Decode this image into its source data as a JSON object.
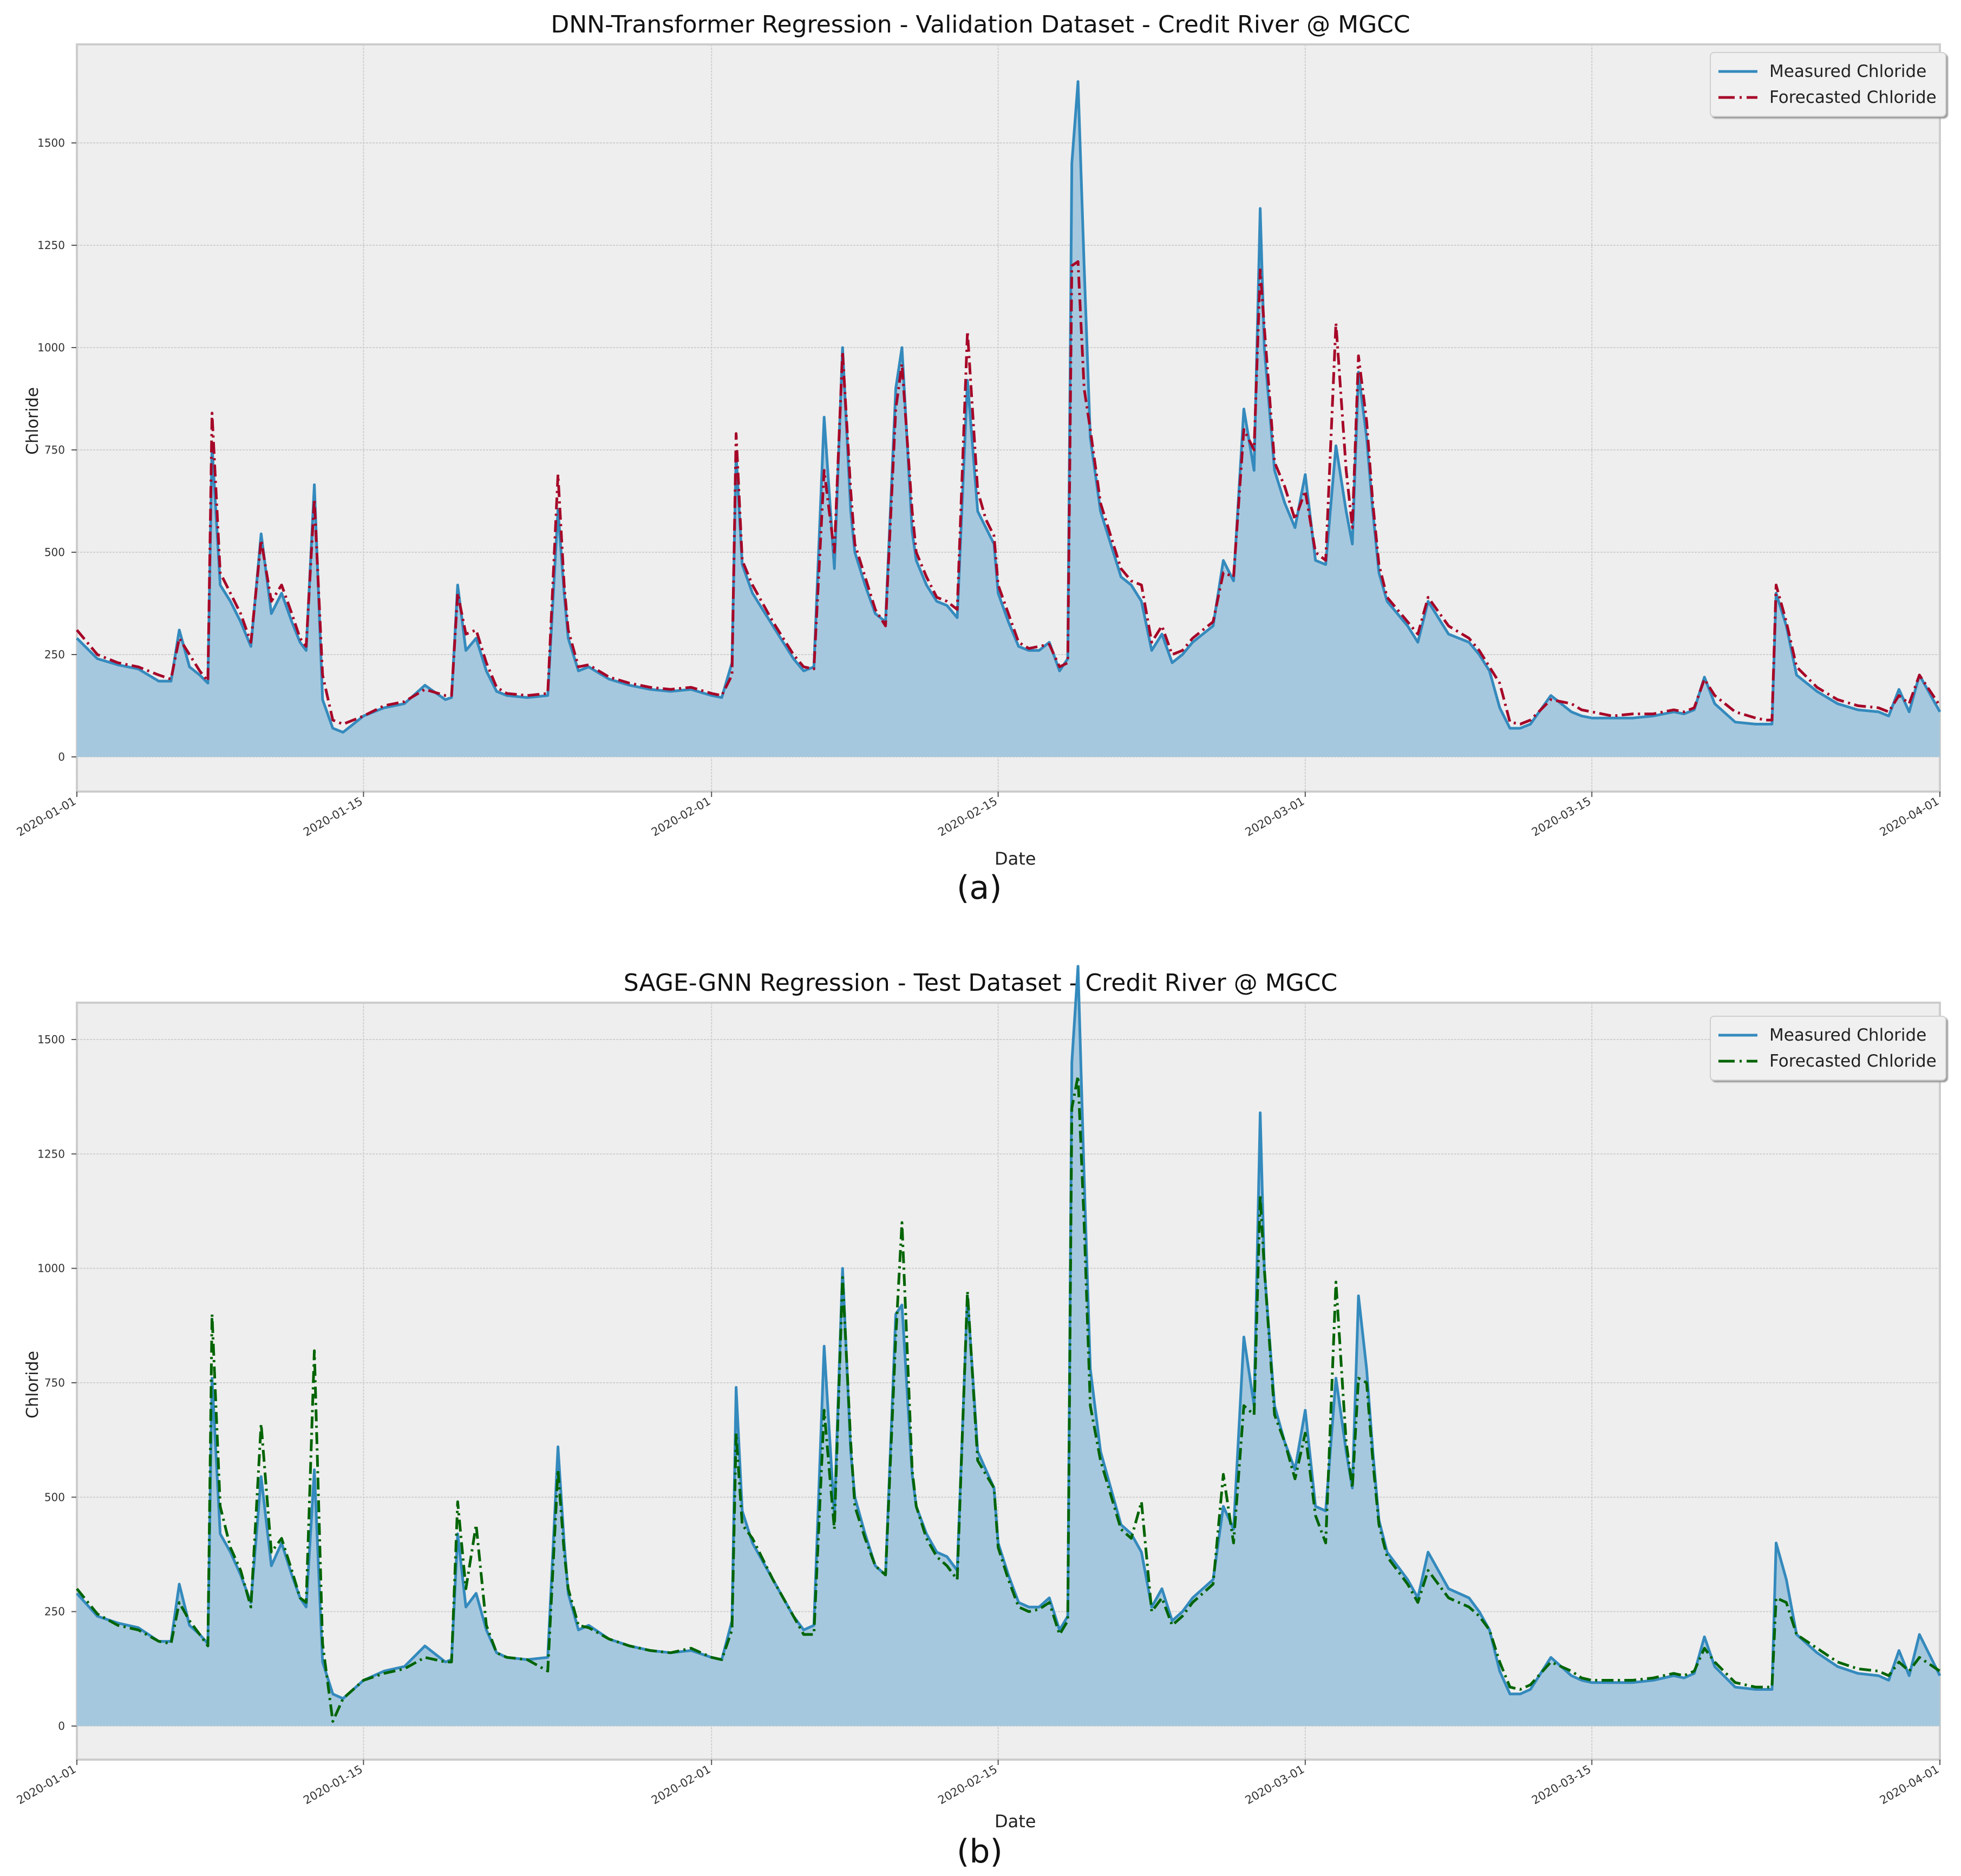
{
  "figures": [
    {
      "id": "a",
      "title": "DNN-Transformer Regression - Validation Dataset - Credit River @ MGCC",
      "ylabel": "Chloride",
      "xlabel": "Date",
      "caption": "(a)",
      "legend": {
        "measured_label": "Measured Chloride",
        "forecast_label": "Forecasted Chloride"
      },
      "colors": {
        "measured": "#348abd",
        "fill": "#a6c8de",
        "forecast": "#a60628",
        "plot_bg": "#eeeeee",
        "grid": "#cfcfcf"
      }
    },
    {
      "id": "b",
      "title": "SAGE-GNN Regression - Test Dataset - Credit River @ MGCC",
      "ylabel": "Chloride",
      "xlabel": "Date",
      "caption": "(b)",
      "legend": {
        "measured_label": "Measured Chloride",
        "forecast_label": "Forecasted Chloride"
      },
      "colors": {
        "measured": "#348abd",
        "fill": "#a6c8de",
        "forecast": "#006400",
        "plot_bg": "#eeeeee",
        "grid": "#cfcfcf"
      }
    }
  ],
  "chart_data": [
    {
      "type": "area",
      "title": "DNN-Transformer Regression - Validation Dataset - Credit River @ MGCC",
      "xlabel": "Date",
      "ylabel": "Chloride",
      "x_ticks": [
        "2020-01-01",
        "2020-01-15",
        "2020-02-01",
        "2020-02-15",
        "2020-03-01",
        "2020-03-15",
        "2020-04-01"
      ],
      "x_tick_days": [
        0,
        14,
        31,
        45,
        60,
        74,
        91
      ],
      "y_ticks": [
        0,
        250,
        500,
        750,
        1000,
        1250,
        1500
      ],
      "ylim": [
        -80,
        1730
      ],
      "xlim_days": [
        0,
        91
      ],
      "grid": true,
      "legend_position": "upper right",
      "x_days": [
        0,
        1,
        2,
        3,
        4,
        4.6,
        5,
        5.5,
        6,
        6.4,
        6.6,
        7,
        7.5,
        8,
        8.5,
        9,
        9.5,
        10,
        10.5,
        10.9,
        11.2,
        11.6,
        12,
        12.5,
        13,
        14,
        15,
        15.5,
        16,
        17,
        18,
        18.3,
        18.6,
        19,
        19.5,
        20,
        20.5,
        21,
        22,
        23,
        23.5,
        23.8,
        24,
        24.5,
        25,
        26,
        27,
        28,
        29,
        30,
        31,
        31.5,
        32,
        32.2,
        32.5,
        33,
        34,
        35,
        35.5,
        36,
        36.5,
        37,
        37.4,
        37.8,
        38,
        38.5,
        39,
        39.5,
        40,
        40.3,
        40.8,
        41,
        41.5,
        42,
        42.5,
        43,
        43.5,
        44,
        44.4,
        44.8,
        45,
        45.5,
        46,
        46.5,
        47,
        47.5,
        48,
        48.4,
        48.6,
        48.9,
        49.2,
        49.5,
        50,
        51,
        51.5,
        52,
        52.5,
        53,
        53.5,
        54,
        54.5,
        55,
        55.5,
        56,
        56.5,
        57,
        57.5,
        57.8,
        58,
        58.5,
        59,
        59.5,
        60,
        60.5,
        61,
        61.5,
        62,
        62.3,
        62.6,
        63,
        63.3,
        63.6,
        64,
        64.5,
        65,
        65.5,
        66,
        67,
        68,
        68.5,
        69,
        69.5,
        70,
        70.5,
        71,
        72,
        73,
        73.5,
        74,
        75,
        76,
        77,
        78,
        78.5,
        79,
        79.5,
        80,
        81,
        82,
        82.5,
        82.8,
        83,
        83.5,
        84,
        85,
        86,
        87,
        88,
        88.5,
        89,
        89.5,
        90,
        91
      ],
      "series": [
        {
          "name": "Measured Chloride",
          "values": [
            290,
            240,
            225,
            215,
            185,
            185,
            310,
            220,
            200,
            180,
            760,
            420,
            380,
            330,
            270,
            545,
            350,
            400,
            330,
            280,
            260,
            665,
            140,
            70,
            60,
            100,
            120,
            125,
            130,
            175,
            140,
            145,
            420,
            260,
            290,
            210,
            160,
            150,
            145,
            150,
            605,
            400,
            290,
            210,
            220,
            190,
            175,
            165,
            160,
            165,
            150,
            145,
            230,
            740,
            470,
            400,
            320,
            240,
            210,
            220,
            830,
            460,
            1000,
            600,
            500,
            420,
            350,
            330,
            900,
            1000,
            550,
            480,
            420,
            380,
            370,
            340,
            920,
            600,
            560,
            520,
            400,
            330,
            270,
            260,
            260,
            280,
            210,
            240,
            1450,
            1650,
            1200,
            780,
            600,
            440,
            420,
            380,
            260,
            300,
            230,
            250,
            280,
            300,
            320,
            480,
            430,
            850,
            700,
            1340,
            1000,
            700,
            620,
            560,
            690,
            480,
            470,
            760,
            600,
            520,
            940,
            780,
            600,
            450,
            380,
            350,
            320,
            280,
            380,
            300,
            280,
            250,
            210,
            120,
            70,
            70,
            80,
            150,
            110,
            100,
            95,
            95,
            95,
            100,
            110,
            105,
            115,
            195,
            130,
            85,
            80,
            80,
            80,
            400,
            320,
            200,
            160,
            130,
            115,
            110,
            100,
            165,
            110,
            200,
            110,
            90,
            85,
            90
          ]
        },
        {
          "name": "Forecasted Chloride",
          "values": [
            310,
            250,
            230,
            220,
            200,
            190,
            290,
            250,
            210,
            185,
            840,
            450,
            400,
            350,
            280,
            530,
            380,
            420,
            350,
            290,
            270,
            630,
            200,
            90,
            80,
            100,
            125,
            130,
            135,
            165,
            150,
            150,
            400,
            300,
            310,
            230,
            170,
            155,
            150,
            155,
            690,
            420,
            310,
            220,
            225,
            195,
            180,
            170,
            165,
            170,
            155,
            150,
            200,
            790,
            480,
            420,
            330,
            250,
            220,
            215,
            700,
            500,
            990,
            650,
            520,
            440,
            360,
            320,
            850,
            960,
            600,
            500,
            440,
            390,
            380,
            360,
            1040,
            650,
            580,
            540,
            420,
            350,
            280,
            265,
            270,
            275,
            220,
            230,
            1200,
            1210,
            900,
            800,
            620,
            460,
            430,
            420,
            280,
            320,
            250,
            260,
            290,
            310,
            330,
            450,
            440,
            800,
            750,
            1190,
            1050,
            720,
            660,
            580,
            650,
            500,
            480,
            1060,
            700,
            560,
            980,
            820,
            620,
            470,
            390,
            360,
            330,
            300,
            390,
            320,
            290,
            260,
            220,
            180,
            85,
            80,
            90,
            140,
            130,
            115,
            110,
            100,
            105,
            105,
            115,
            110,
            120,
            190,
            150,
            110,
            95,
            90,
            90,
            420,
            330,
            220,
            170,
            140,
            125,
            120,
            110,
            150,
            130,
            200,
            125,
            100,
            95,
            95
          ]
        }
      ]
    },
    {
      "type": "area",
      "title": "SAGE-GNN Regression - Test Dataset - Credit River @ MGCC",
      "xlabel": "Date",
      "ylabel": "Chloride",
      "x_ticks": [
        "2020-01-01",
        "2020-01-15",
        "2020-02-01",
        "2020-02-15",
        "2020-03-01",
        "2020-03-15",
        "2020-04-01"
      ],
      "x_tick_days": [
        0,
        14,
        31,
        45,
        60,
        74,
        91
      ],
      "y_ticks": [
        0,
        250,
        500,
        750,
        1000,
        1250,
        1500
      ],
      "ylim": [
        -80,
        1730
      ],
      "xlim_days": [
        0,
        91
      ],
      "grid": true,
      "legend_position": "upper right",
      "x_days": [
        0,
        1,
        2,
        3,
        4,
        4.6,
        5,
        5.5,
        6,
        6.4,
        6.6,
        7,
        7.5,
        8,
        8.5,
        9,
        9.5,
        10,
        10.5,
        10.9,
        11.2,
        11.6,
        12,
        12.5,
        13,
        14,
        15,
        15.5,
        16,
        17,
        18,
        18.3,
        18.6,
        19,
        19.5,
        20,
        20.5,
        21,
        22,
        23,
        23.5,
        23.8,
        24,
        24.5,
        25,
        26,
        27,
        28,
        29,
        30,
        31,
        31.5,
        32,
        32.2,
        32.5,
        33,
        34,
        35,
        35.5,
        36,
        36.5,
        37,
        37.4,
        37.8,
        38,
        38.5,
        39,
        39.5,
        40,
        40.3,
        40.8,
        41,
        41.5,
        42,
        42.5,
        43,
        43.5,
        44,
        44.4,
        44.8,
        45,
        45.5,
        46,
        46.5,
        47,
        47.5,
        48,
        48.4,
        48.6,
        48.9,
        49.2,
        49.5,
        50,
        51,
        51.5,
        52,
        52.5,
        53,
        53.5,
        54,
        54.5,
        55,
        55.5,
        56,
        56.5,
        57,
        57.5,
        57.8,
        58,
        58.5,
        59,
        59.5,
        60,
        60.5,
        61,
        61.5,
        62,
        62.3,
        62.6,
        63,
        63.3,
        63.6,
        64,
        64.5,
        65,
        65.5,
        66,
        67,
        68,
        68.5,
        69,
        69.5,
        70,
        70.5,
        71,
        72,
        73,
        73.5,
        74,
        75,
        76,
        77,
        78,
        78.5,
        79,
        79.5,
        80,
        81,
        82,
        82.5,
        82.8,
        83,
        83.5,
        84,
        85,
        86,
        87,
        88,
        88.5,
        89,
        89.5,
        90,
        91
      ],
      "series": [
        {
          "name": "Measured Chloride",
          "values": [
            290,
            240,
            225,
            215,
            185,
            185,
            310,
            220,
            200,
            180,
            760,
            420,
            380,
            330,
            270,
            545,
            350,
            400,
            330,
            280,
            260,
            560,
            140,
            70,
            60,
            100,
            120,
            125,
            130,
            175,
            140,
            145,
            420,
            260,
            290,
            210,
            160,
            150,
            145,
            150,
            610,
            400,
            290,
            210,
            220,
            190,
            175,
            165,
            160,
            165,
            150,
            145,
            230,
            740,
            470,
            400,
            320,
            240,
            210,
            220,
            830,
            460,
            1000,
            600,
            500,
            420,
            350,
            330,
            900,
            920,
            550,
            480,
            420,
            380,
            370,
            340,
            940,
            600,
            560,
            520,
            400,
            330,
            270,
            260,
            260,
            280,
            210,
            240,
            1450,
            1660,
            1200,
            780,
            600,
            440,
            420,
            380,
            260,
            300,
            230,
            250,
            280,
            300,
            320,
            480,
            430,
            850,
            700,
            1340,
            1000,
            700,
            620,
            560,
            690,
            480,
            470,
            760,
            600,
            520,
            940,
            780,
            600,
            450,
            380,
            350,
            320,
            280,
            380,
            300,
            280,
            250,
            210,
            120,
            70,
            70,
            80,
            150,
            110,
            100,
            95,
            95,
            95,
            100,
            110,
            105,
            115,
            195,
            130,
            85,
            80,
            80,
            80,
            400,
            320,
            200,
            160,
            130,
            115,
            110,
            100,
            165,
            110,
            200,
            110,
            90,
            85,
            90
          ]
        },
        {
          "name": "Forecasted Chloride",
          "values": [
            300,
            245,
            220,
            210,
            185,
            180,
            270,
            230,
            200,
            175,
            900,
            480,
            390,
            340,
            260,
            660,
            380,
            410,
            340,
            280,
            270,
            820,
            180,
            10,
            60,
            100,
            115,
            120,
            125,
            150,
            140,
            140,
            490,
            300,
            440,
            220,
            160,
            150,
            145,
            120,
            560,
            380,
            300,
            220,
            215,
            190,
            175,
            165,
            160,
            170,
            150,
            145,
            210,
            640,
            440,
            410,
            320,
            240,
            200,
            200,
            690,
            430,
            980,
            620,
            480,
            410,
            350,
            330,
            850,
            1100,
            560,
            480,
            410,
            370,
            350,
            320,
            950,
            580,
            550,
            520,
            390,
            320,
            260,
            250,
            255,
            270,
            200,
            230,
            1350,
            1420,
            1100,
            700,
            580,
            430,
            410,
            490,
            250,
            280,
            220,
            240,
            270,
            290,
            310,
            550,
            400,
            700,
            680,
            1160,
            1000,
            680,
            620,
            540,
            640,
            460,
            400,
            970,
            620,
            520,
            760,
            750,
            580,
            440,
            370,
            340,
            310,
            270,
            340,
            280,
            260,
            240,
            210,
            140,
            85,
            80,
            90,
            140,
            120,
            105,
            100,
            100,
            100,
            105,
            115,
            110,
            120,
            170,
            140,
            95,
            85,
            85,
            85,
            280,
            270,
            200,
            170,
            140,
            125,
            120,
            110,
            140,
            120,
            150,
            120,
            100,
            95,
            95
          ]
        }
      ]
    }
  ]
}
